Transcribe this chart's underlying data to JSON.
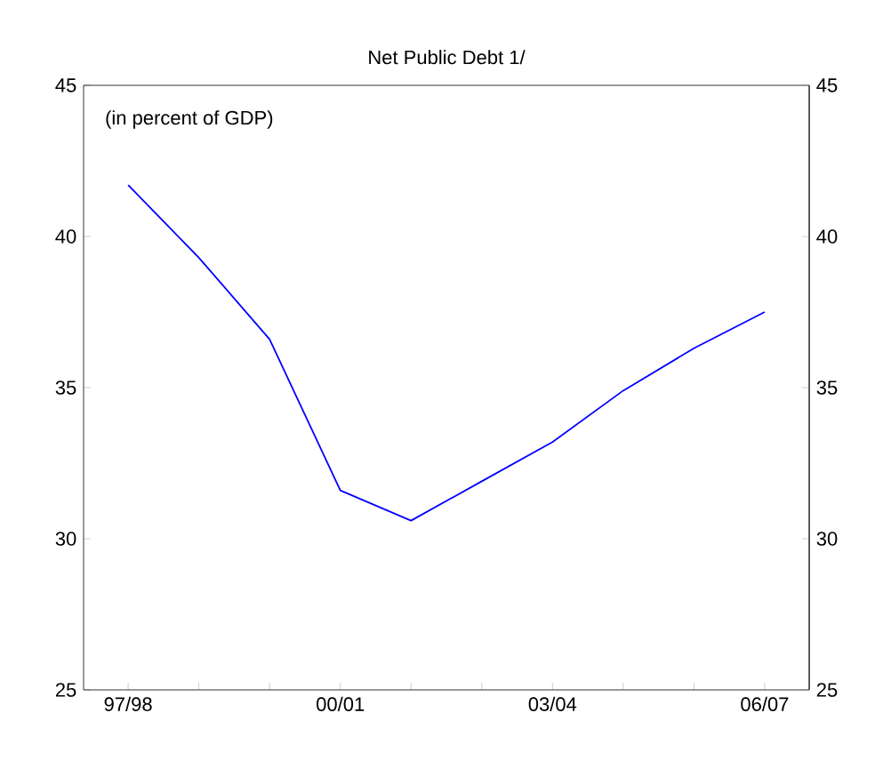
{
  "chart_data": {
    "type": "line",
    "title": "Net Public Debt 1/",
    "annotations": [
      "(in percent of GDP)"
    ],
    "categories": [
      "97/98",
      null,
      null,
      "00/01",
      null,
      null,
      "03/04",
      null,
      null,
      "06/07"
    ],
    "series": [
      {
        "color": "#0000ff",
        "values": [
          41.7,
          39.3,
          36.6,
          31.6,
          30.6,
          31.9,
          33.2,
          34.9,
          36.3,
          37.5
        ]
      }
    ],
    "ylim": [
      25,
      45
    ],
    "yticks": [
      25,
      30,
      35,
      40,
      45
    ],
    "y2lim": [
      25,
      45
    ],
    "y2ticks": [
      25,
      30,
      35,
      40,
      45
    ],
    "grid": false,
    "marker": "none",
    "line_style": "solid"
  }
}
